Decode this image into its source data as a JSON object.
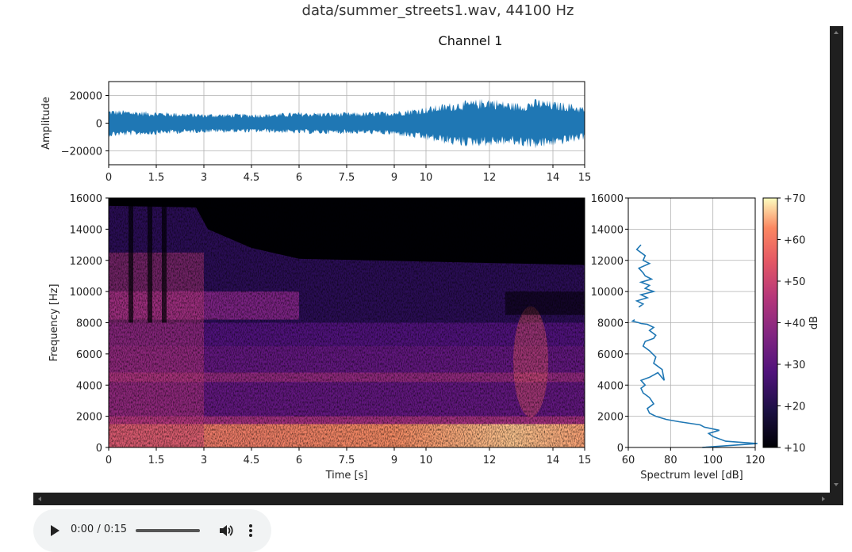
{
  "page": {
    "title": "data/summer_streets1.wav, 44100 Hz"
  },
  "audio": {
    "time": "0:00 / 0:15",
    "progress": 0.0,
    "play_icon": "play-icon",
    "volume_icon": "volume-icon",
    "menu_icon": "more-vert-icon"
  },
  "colors": {
    "waveform": "#1f77b4",
    "spectrum": "#1f77b4",
    "grid": "#b0b0b0",
    "colormap": "magma"
  },
  "chart_data": [
    {
      "type": "line",
      "title": "Channel 1",
      "xlabel": "",
      "ylabel": "Amplitude",
      "xlim": [
        0,
        15
      ],
      "ylim": [
        -30000,
        30000
      ],
      "xticks": [
        0,
        1.5,
        3,
        4.5,
        6,
        7.5,
        9,
        10,
        12,
        14,
        15
      ],
      "xtick_labels": [
        "0",
        "1.5",
        "3",
        "4.5",
        "6",
        "7.5",
        "9",
        "10",
        "12",
        "14",
        "15"
      ],
      "yticks": [
        20000,
        0,
        -20000
      ],
      "ytick_labels": [
        "20000",
        "0",
        "−20000"
      ],
      "grid": true,
      "series": [
        {
          "x": [
            0,
            1,
            2,
            3,
            4,
            5,
            6,
            7,
            8,
            9,
            10,
            10.5,
            11,
            11.5,
            12,
            12.5,
            13,
            13.5,
            14,
            14.5,
            15
          ],
          "upper": [
            10000,
            9000,
            8000,
            7000,
            7000,
            7000,
            8000,
            8000,
            8000,
            9000,
            12000,
            14000,
            16000,
            17000,
            19000,
            16000,
            15000,
            18000,
            16000,
            15000,
            12000
          ],
          "lower": [
            -10000,
            -9000,
            -8000,
            -7000,
            -7000,
            -7000,
            -8000,
            -8000,
            -8000,
            -9000,
            -13000,
            -15000,
            -17000,
            -17000,
            -17000,
            -16000,
            -17000,
            -19000,
            -17000,
            -15000,
            -12000
          ]
        }
      ]
    },
    {
      "type": "heatmap",
      "title": "",
      "xlabel": "Time [s]",
      "ylabel": "Frequency [Hz]",
      "xlim": [
        0,
        15
      ],
      "ylim": [
        0,
        16000
      ],
      "xticks": [
        0,
        1.5,
        3,
        4.5,
        6,
        7.5,
        9,
        10,
        12,
        14,
        15
      ],
      "xtick_labels": [
        "0",
        "1.5",
        "3",
        "4.5",
        "6",
        "7.5",
        "9",
        "10",
        "12",
        "14",
        "15"
      ],
      "yticks": [
        0,
        2000,
        4000,
        6000,
        8000,
        10000,
        12000,
        14000,
        16000
      ],
      "ytick_labels": [
        "0",
        "2000",
        "4000",
        "6000",
        "8000",
        "10000",
        "12000",
        "14000",
        "16000"
      ],
      "colorbar": {
        "label": "dB",
        "range": [
          10,
          70
        ],
        "ticks": [
          70,
          60,
          50,
          40,
          30,
          20,
          10
        ],
        "tick_labels": [
          "+70",
          "+60",
          "+50",
          "+40",
          "+30",
          "+20",
          "+10"
        ]
      }
    },
    {
      "type": "line",
      "title": "",
      "xlabel": "Spectrum level [dB]",
      "ylabel": "",
      "xlim": [
        60,
        120
      ],
      "ylim": [
        0,
        16000
      ],
      "xticks": [
        60,
        80,
        100,
        120
      ],
      "xtick_labels": [
        "60",
        "80",
        "100",
        "120"
      ],
      "yticks": [
        0,
        2000,
        4000,
        6000,
        8000,
        10000,
        12000,
        14000,
        16000
      ],
      "ytick_labels": [
        "0",
        "2000",
        "4000",
        "6000",
        "8000",
        "10000",
        "12000",
        "14000",
        "16000"
      ],
      "grid": true,
      "series": [
        {
          "x": [
            95,
            121,
            106,
            100,
            98,
            103,
            96,
            94,
            89,
            84,
            78,
            73,
            70,
            69,
            72,
            70,
            67,
            66,
            68,
            66,
            70,
            74,
            77,
            76,
            72,
            73,
            70,
            67,
            68,
            72,
            73,
            70,
            72,
            69,
            66,
            65,
            62,
            63
          ],
          "y": [
            0,
            250,
            400,
            700,
            900,
            1100,
            1300,
            1450,
            1550,
            1650,
            1800,
            2000,
            2200,
            2500,
            2800,
            3200,
            3500,
            3800,
            4000,
            4300,
            4500,
            4800,
            4300,
            5000,
            5400,
            5800,
            6200,
            6500,
            6800,
            7000,
            7200,
            7500,
            7700,
            7900,
            7950,
            8000,
            8100,
            8200
          ]
        },
        {
          "x": [
            65,
            67,
            64,
            69,
            66,
            72,
            68,
            70,
            66,
            71,
            68,
            67,
            65,
            70,
            67,
            68,
            64,
            66
          ],
          "y": [
            9000,
            9200,
            9400,
            9600,
            9800,
            10000,
            10200,
            10400,
            10600,
            10800,
            11000,
            11200,
            11500,
            11800,
            12000,
            12300,
            12700,
            13000
          ]
        }
      ]
    }
  ]
}
